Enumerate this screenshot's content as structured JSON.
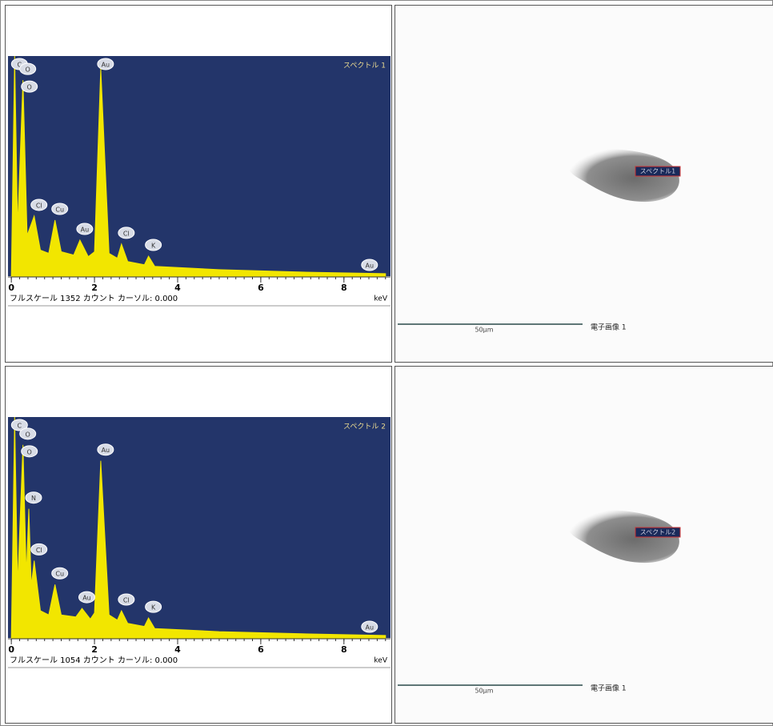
{
  "spectra": [
    {
      "chart_data": {
        "type": "line",
        "title": "スペクトル 1",
        "footer": "フルスケール 1352 カウント カーソル: 0.000",
        "x_unit": "keV",
        "xlim": [
          -0.08,
          9.12
        ],
        "xticks": [
          0,
          2,
          4,
          6,
          8
        ],
        "ylim": [
          0,
          1352
        ],
        "color": "#f2e600",
        "x": [
          0,
          0.08,
          0.15,
          0.28,
          0.38,
          0.55,
          0.7,
          0.9,
          1.05,
          1.2,
          1.5,
          1.65,
          1.85,
          2.0,
          2.15,
          2.35,
          2.55,
          2.65,
          2.8,
          3.2,
          3.3,
          3.45,
          5,
          7,
          9
        ],
        "values": [
          0,
          1352,
          300,
          1204,
          250,
          369,
          160,
          140,
          344,
          150,
          130,
          221,
          120,
          150,
          1278,
          140,
          110,
          197,
          90,
          70,
          123,
          60,
          40,
          25,
          15
        ],
        "peaks": [
          {
            "label": "C",
            "energy": 0.08
          },
          {
            "label": "O",
            "energy": 0.28
          },
          {
            "label": "O",
            "energy": 0.28
          },
          {
            "label": "Cl",
            "energy": 0.55
          },
          {
            "label": "Cu",
            "energy": 1.05
          },
          {
            "label": "Au",
            "energy": 1.65
          },
          {
            "label": "Au",
            "energy": 2.15
          },
          {
            "label": "Cl",
            "energy": 2.65
          },
          {
            "label": "K",
            "energy": 3.3
          },
          {
            "label": "Au",
            "energy": 8.5
          }
        ]
      },
      "image": {
        "spectrum_label": "スペクトル1",
        "scale": "50µm",
        "caption": "電子画像 1"
      }
    },
    {
      "chart_data": {
        "type": "line",
        "title": "スペクトル 2",
        "footer": "フルスケール 1054 カウント カーソル: 0.000",
        "x_unit": "keV",
        "xlim": [
          -0.08,
          9.12
        ],
        "xticks": [
          0,
          2,
          4,
          6,
          8
        ],
        "ylim": [
          0,
          1054
        ],
        "color": "#f2e600",
        "x": [
          0,
          0.08,
          0.15,
          0.28,
          0.36,
          0.42,
          0.48,
          0.55,
          0.7,
          0.9,
          1.05,
          1.2,
          1.55,
          1.7,
          1.9,
          2.0,
          2.15,
          2.35,
          2.55,
          2.65,
          2.8,
          3.2,
          3.3,
          3.45,
          5,
          7,
          9
        ],
        "values": [
          0,
          1054,
          250,
          921,
          300,
          616,
          250,
          369,
          130,
          110,
          255,
          110,
          100,
          141,
          90,
          120,
          845,
          110,
          85,
          130,
          70,
          55,
          95,
          45,
          30,
          20,
          12
        ],
        "peaks": [
          {
            "label": "C",
            "energy": 0.08
          },
          {
            "label": "O",
            "energy": 0.28
          },
          {
            "label": "O",
            "energy": 0.28
          },
          {
            "label": "N",
            "energy": 0.42
          },
          {
            "label": "Cl",
            "energy": 0.55
          },
          {
            "label": "Cu",
            "energy": 1.05
          },
          {
            "label": "Au",
            "energy": 1.7
          },
          {
            "label": "Au",
            "energy": 2.15
          },
          {
            "label": "Cl",
            "energy": 2.65
          },
          {
            "label": "K",
            "energy": 3.3
          },
          {
            "label": "Au",
            "energy": 8.5
          }
        ]
      },
      "image": {
        "spectrum_label": "スペクトル2",
        "scale": "50µm",
        "caption": "電子画像 1"
      }
    }
  ]
}
